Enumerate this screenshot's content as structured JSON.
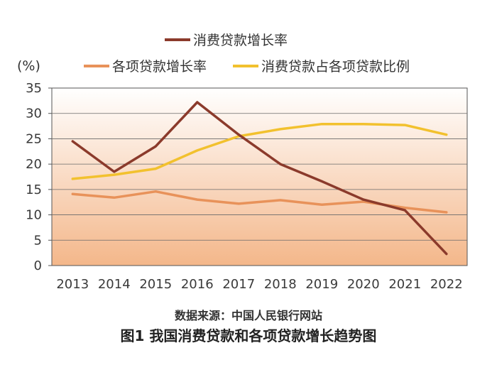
{
  "chart_data": {
    "type": "line",
    "unit_label": "(%)",
    "x": [
      "2013",
      "2014",
      "2015",
      "2016",
      "2017",
      "2018",
      "2019",
      "2020",
      "2021",
      "2022"
    ],
    "ylim": [
      0,
      35
    ],
    "yticks": [
      0,
      5,
      10,
      15,
      20,
      25,
      30,
      35
    ],
    "legend_placement": "top",
    "grid": true,
    "series": [
      {
        "name": "消费贷款增长率",
        "color": "#8b3a2b",
        "values": [
          24.5,
          18.5,
          23.5,
          32.2,
          25.8,
          20.0,
          16.6,
          13.0,
          10.9,
          2.3
        ]
      },
      {
        "name": "各项贷款增长率",
        "color": "#e8925a",
        "values": [
          14.1,
          13.4,
          14.6,
          13.0,
          12.2,
          12.9,
          12.0,
          12.6,
          11.4,
          10.5
        ]
      },
      {
        "name": "消费贷款占各项贷款比例",
        "color": "#f2c12e",
        "values": [
          17.1,
          17.9,
          19.1,
          22.7,
          25.5,
          26.9,
          27.9,
          27.9,
          27.7,
          25.8
        ]
      }
    ],
    "plot_gradient": [
      "#ffffff",
      "#f4b78a"
    ]
  },
  "source": "数据来源：中国人民银行网站",
  "caption": "图1  我国消费贷款和各项贷款增长趋势图"
}
